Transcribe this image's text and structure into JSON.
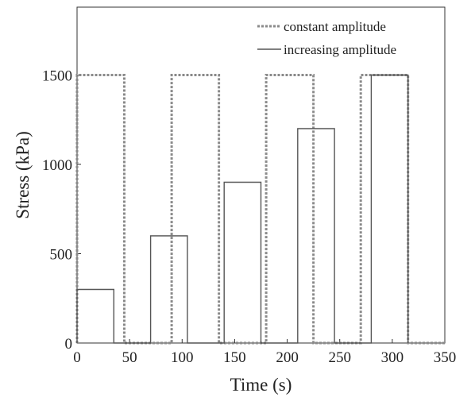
{
  "chart_data": {
    "type": "line",
    "xlabel": "Time (s)",
    "ylabel": "Stress (kPa)",
    "xlim": [
      0,
      350
    ],
    "ylim": [
      0,
      1880
    ],
    "xticks": [
      0,
      50,
      100,
      150,
      200,
      250,
      300,
      350
    ],
    "yticks": [
      0,
      500,
      1000,
      1500
    ],
    "grid": false,
    "legend_position": "top-right",
    "series": [
      {
        "name": "constant amplitude",
        "style": "dotted",
        "color": "#8a8a8a",
        "x": [
          0,
          0,
          45,
          45,
          90,
          90,
          135,
          135,
          180,
          180,
          225,
          225,
          270,
          270,
          315,
          315,
          350
        ],
        "y": [
          0,
          1500,
          1500,
          0,
          0,
          1500,
          1500,
          0,
          0,
          1500,
          1500,
          0,
          0,
          1500,
          1500,
          0,
          0
        ]
      },
      {
        "name": "increasing amplitude",
        "style": "solid",
        "color": "#555555",
        "x": [
          0,
          0,
          35,
          35,
          70,
          70,
          105,
          105,
          140,
          140,
          175,
          175,
          210,
          210,
          245,
          245,
          280,
          280,
          315,
          315
        ],
        "y": [
          0,
          300,
          300,
          0,
          0,
          600,
          600,
          0,
          0,
          900,
          900,
          0,
          0,
          1200,
          1200,
          0,
          0,
          1500,
          1500,
          0
        ]
      }
    ]
  }
}
